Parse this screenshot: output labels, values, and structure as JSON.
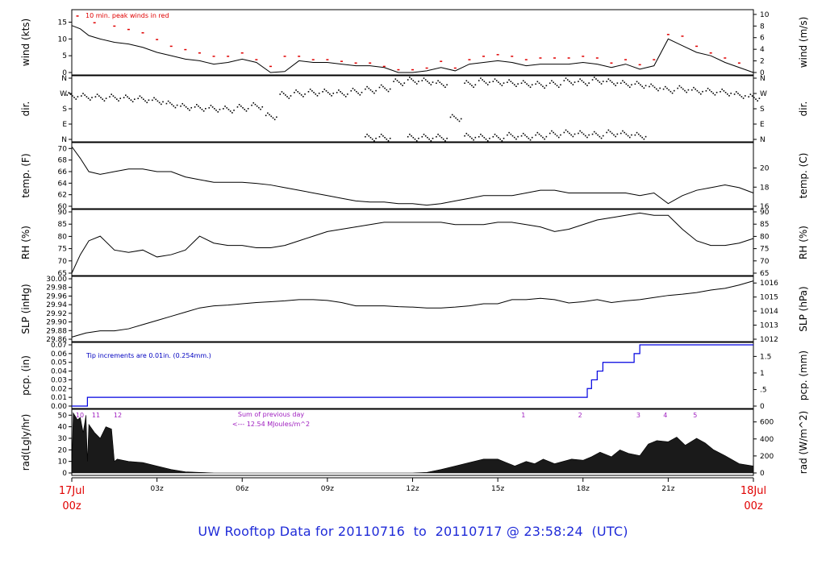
{
  "chart_data": {
    "type": "line",
    "x_axis": {
      "ticks": [
        "03z",
        "06z",
        "09z",
        "12z",
        "15z",
        "18z",
        "21z"
      ],
      "start_label": [
        "17Jul",
        "00z"
      ],
      "end_label": [
        "18Jul",
        "00z"
      ]
    },
    "panels": [
      {
        "id": "wind",
        "ylabel_left": "wind (kts)",
        "ylabel_right": "wind (m/s)",
        "left_ticks": [
          "0",
          "5",
          "10",
          "15"
        ],
        "right_ticks": [
          "0",
          "2",
          "4",
          "6",
          "8",
          "10"
        ],
        "ylim": [
          0,
          18
        ],
        "annotation": "10 min. peak winds in red",
        "series": [
          {
            "color": "#000000",
            "x": [
              0,
              0.3,
              0.6,
              1,
              1.5,
              2,
              2.5,
              3,
              3.5,
              4,
              4.5,
              5,
              5.5,
              6,
              6.5,
              7,
              7.5,
              8,
              8.5,
              9,
              9.5,
              10,
              10.5,
              11,
              11.5,
              12,
              12.5,
              13,
              13.5,
              14,
              14.5,
              15,
              15.5,
              16,
              16.5,
              17,
              17.5,
              18,
              18.5,
              19,
              19.5,
              20,
              20.5,
              21,
              21.5,
              22,
              22.5,
              23,
              23.5,
              24
            ],
            "y": [
              14,
              13,
              11,
              10,
              9,
              8.5,
              7.5,
              6,
              5,
              4,
              3.5,
              2.5,
              3,
              4,
              3,
              0,
              0.3,
              3.5,
              3,
              3,
              2.5,
              2,
              2,
              1.5,
              0,
              0,
              0.5,
              1.5,
              0.5,
              2.5,
              3,
              3.5,
              3,
              2,
              2.5,
              2.5,
              2.5,
              3,
              2.5,
              1.5,
              2.5,
              1,
              2,
              10,
              8,
              6,
              5,
              3,
              1.5,
              0
            ]
          },
          {
            "name": "10 min. peak winds",
            "color": "#e00000",
            "x": [
              0.2,
              0.8,
              1.5,
              2,
              2.5,
              3,
              3.5,
              4,
              4.5,
              5,
              5.5,
              6,
              6.5,
              7,
              7.5,
              8,
              8.5,
              9,
              9.5,
              10,
              10.5,
              11,
              11.5,
              12,
              12.5,
              13,
              13.5,
              14,
              14.5,
              15,
              15.5,
              16,
              16.5,
              17,
              17.5,
              18,
              18.5,
              19,
              19.5,
              20,
              20.5,
              21,
              21.5,
              22,
              22.5,
              23,
              23.5
            ],
            "y": [
              17,
              15,
              14,
              13,
              12,
              10,
              8,
              7,
              6,
              5,
              5,
              6,
              4,
              2,
              5,
              5,
              4,
              4,
              3.5,
              3,
              3,
              2,
              1,
              1,
              1.5,
              3.5,
              1.5,
              4,
              5,
              5.5,
              5,
              4,
              4.5,
              4.5,
              4.5,
              5,
              4.5,
              3,
              4,
              2.5,
              4,
              11.5,
              11,
              8,
              6,
              4.5,
              3
            ]
          }
        ]
      },
      {
        "id": "dir",
        "ylabel_left": "dir.",
        "ylabel_right": "dir.",
        "left_ticks": [
          "N",
          "E",
          "S",
          "W",
          "N"
        ],
        "right_ticks": [
          "N",
          "E",
          "S",
          "W",
          "N"
        ],
        "ylim": [
          0,
          360
        ],
        "series": [
          {
            "color": "#000000",
            "style": "points",
            "x": [
              0,
              0.5,
              1,
              1.5,
              2,
              2.5,
              3,
              3.5,
              4,
              4.5,
              5,
              5.5,
              6,
              6.5,
              7,
              7.5,
              8,
              8.5,
              9,
              9.5,
              10,
              10.5,
              11,
              11.5,
              12,
              12.5,
              13,
              13.5,
              14,
              14.5,
              15,
              15.5,
              16,
              16.5,
              17,
              17.5,
              18,
              18.5,
              19,
              19.5,
              20,
              20.5,
              21,
              21.5,
              22,
              22.5,
              23,
              23.5,
              24
            ],
            "y": [
              250,
              245,
              240,
              240,
              235,
              230,
              220,
              200,
              185,
              180,
              175,
              170,
              180,
              190,
              130,
              255,
              265,
              270,
              270,
              265,
              275,
              285,
              295,
              330,
              340,
              335,
              320,
              120,
              320,
              335,
              330,
              325,
              320,
              315,
              320,
              335,
              330,
              340,
              330,
              320,
              315,
              300,
              285,
              290,
              280,
              275,
              270,
              255,
              240
            ]
          },
          {
            "color": "#000000",
            "style": "points",
            "x": [
              10.5,
              11,
              12,
              12.5,
              13,
              14,
              14.5,
              15,
              15.5,
              16,
              16.5,
              17,
              17.5,
              18,
              18.5,
              19,
              19.5,
              20
            ],
            "y": [
              5,
              5,
              5,
              5,
              5,
              10,
              5,
              5,
              15,
              10,
              15,
              25,
              30,
              25,
              20,
              30,
              25,
              15
            ]
          }
        ]
      },
      {
        "id": "temp",
        "ylabel_left": "temp. (F)",
        "ylabel_right": "temp. (C)",
        "left_ticks": [
          "60",
          "62",
          "64",
          "66",
          "68",
          "70"
        ],
        "right_ticks": [
          "16",
          "18",
          "20"
        ],
        "ylim": [
          59,
          70.5
        ],
        "series": [
          {
            "color": "#000000",
            "x": [
              0,
              0.3,
              0.6,
              1,
              1.5,
              2,
              2.5,
              3,
              3.5,
              4,
              4.5,
              5,
              5.5,
              6,
              6.5,
              7,
              7.5,
              8,
              8.5,
              9,
              9.5,
              10,
              10.5,
              11,
              11.5,
              12,
              12.5,
              13,
              13.5,
              14,
              14.5,
              15,
              15.5,
              16,
              16.5,
              17,
              17.5,
              18,
              18.5,
              19,
              19.5,
              20,
              20.5,
              21,
              21.5,
              22,
              22.5,
              23,
              23.5,
              24
            ],
            "y": [
              70.2,
              68,
              65.5,
              65,
              65.5,
              66,
              66,
              65.5,
              65.5,
              64.5,
              64,
              63.5,
              63.5,
              63.5,
              63.3,
              63,
              62.5,
              62,
              61.5,
              61,
              60.5,
              60,
              59.8,
              59.8,
              59.5,
              59.5,
              59.2,
              59.5,
              60,
              60.5,
              61,
              61,
              61,
              61.5,
              62,
              62,
              61.5,
              61.5,
              61.5,
              61.5,
              61.5,
              61,
              61.5,
              59.5,
              61,
              62,
              62.5,
              63,
              62.5,
              61.5
            ]
          }
        ]
      },
      {
        "id": "rh",
        "ylabel_left": "RH (%)",
        "ylabel_right": "RH (%)",
        "left_ticks": [
          "65",
          "70",
          "75",
          "80",
          "85",
          "90"
        ],
        "right_ticks": [
          "65",
          "70",
          "75",
          "80",
          "85",
          "90"
        ],
        "ylim": [
          65,
          91.5
        ],
        "series": [
          {
            "color": "#000000",
            "x": [
              0,
              0.3,
              0.6,
              1,
              1.5,
              2,
              2.5,
              3,
              3.5,
              4,
              4.5,
              5,
              5.5,
              6,
              6.5,
              7,
              7.5,
              8,
              8.5,
              9,
              9.5,
              10,
              10.5,
              11,
              11.5,
              12,
              12.5,
              13,
              13.5,
              14,
              14.5,
              15,
              15.5,
              16,
              16.5,
              17,
              17.5,
              18,
              18.5,
              19,
              19.5,
              20,
              20.5,
              21,
              21.5,
              22,
              22.5,
              23,
              23.5,
              24
            ],
            "y": [
              65,
              73,
              79,
              81,
              75,
              74,
              75,
              72,
              73,
              75,
              81,
              78,
              77,
              77,
              76,
              76,
              77,
              79,
              81,
              83,
              84,
              85,
              86,
              87,
              87,
              87,
              87,
              87,
              86,
              86,
              86,
              87,
              87,
              86,
              85,
              83,
              84,
              86,
              88,
              89,
              90,
              91,
              90,
              90,
              84,
              79,
              77,
              77,
              78,
              80
            ]
          }
        ]
      },
      {
        "id": "slp",
        "ylabel_left": "SLP (inHg)",
        "ylabel_right": "SLP (hPa)",
        "left_ticks": [
          "29.86",
          "29.88",
          "29.90",
          "29.92",
          "29.94",
          "29.96",
          "29.98",
          "30.00"
        ],
        "right_ticks": [
          "1012",
          "1013",
          "1014",
          "1015",
          "1016"
        ],
        "ylim": [
          29.86,
          30.005
        ],
        "series": [
          {
            "color": "#000000",
            "x": [
              0,
              0.5,
              1,
              1.5,
              2,
              2.5,
              3,
              3.5,
              4,
              4.5,
              5,
              5.5,
              6,
              6.5,
              7,
              7.5,
              8,
              8.5,
              9,
              9.5,
              10,
              10.5,
              11,
              11.5,
              12,
              12.5,
              13,
              13.5,
              14,
              14.5,
              15,
              15.5,
              16,
              16.5,
              17,
              17.5,
              18,
              18.5,
              19,
              19.5,
              20,
              20.5,
              21,
              21.5,
              22,
              22.5,
              23,
              23.5,
              24
            ],
            "y": [
              29.865,
              29.875,
              29.88,
              29.88,
              29.885,
              29.895,
              29.905,
              29.915,
              29.925,
              29.935,
              29.94,
              29.942,
              29.945,
              29.948,
              29.95,
              29.952,
              29.955,
              29.955,
              29.953,
              29.948,
              29.94,
              29.94,
              29.94,
              29.938,
              29.937,
              29.935,
              29.935,
              29.937,
              29.94,
              29.945,
              29.945,
              29.955,
              29.955,
              29.958,
              29.955,
              29.947,
              29.95,
              29.955,
              29.948,
              29.952,
              29.955,
              29.96,
              29.965,
              29.968,
              29.972,
              29.978,
              29.982,
              29.99,
              30.0
            ]
          }
        ]
      },
      {
        "id": "pcp",
        "ylabel_left": "pcp. (in)",
        "ylabel_right": "pcp. (mm)",
        "left_ticks": [
          "0.00",
          "0.01",
          "0.02",
          "0.03",
          "0.04",
          "0.05",
          "0.06",
          "0.07"
        ],
        "right_ticks": [
          "0",
          ".5",
          "1",
          "1.5"
        ],
        "ylim": [
          0,
          0.07
        ],
        "annotation": "Tip increments are 0.01in. (0.254mm.)",
        "series": [
          {
            "color": "#0000e0",
            "style": "step",
            "x": [
              0,
              0.5,
              0.55,
              18,
              18.15,
              18.3,
              18.5,
              18.7,
              19.2,
              19.8,
              20.0,
              24
            ],
            "y": [
              0,
              0,
              0.01,
              0.01,
              0.02,
              0.03,
              0.04,
              0.05,
              0.05,
              0.06,
              0.07,
              0.07
            ]
          }
        ]
      },
      {
        "id": "rad",
        "ylabel_left": "rad(Lgly/hr)",
        "ylabel_right": "rad (W/m^2)",
        "left_ticks": [
          "0",
          "10",
          "20",
          "30",
          "40",
          "50"
        ],
        "right_ticks": [
          "0",
          "200",
          "400",
          "600"
        ],
        "ylim": [
          0,
          53
        ],
        "note": [
          "Sum of previous day",
          "<--- 12.54 MJoules/m^2"
        ],
        "hour_labels": [
          "10",
          "11",
          "12",
          "1",
          "2",
          "3",
          "4",
          "5"
        ],
        "series": [
          {
            "color": "#1a1a1a",
            "style": "area",
            "x": [
              0,
              0.05,
              0.2,
              0.3,
              0.4,
              0.5,
              0.55,
              0.6,
              0.8,
              1.0,
              1.2,
              1.4,
              1.5,
              1.6,
              2,
              2.5,
              3,
              3.5,
              4,
              4.5,
              5,
              12,
              12.5,
              13,
              13.5,
              14,
              14.5,
              15,
              15.3,
              15.6,
              16,
              16.3,
              16.6,
              17,
              17.3,
              17.6,
              18,
              18.3,
              18.6,
              19,
              19.3,
              19.6,
              20,
              20.3,
              20.6,
              21,
              21.3,
              21.6,
              22,
              22.3,
              22.6,
              23,
              23.5,
              24
            ],
            "y": [
              0,
              52,
              46,
              48,
              35,
              50,
              10,
              42,
              35,
              30,
              40,
              38,
              10,
              12,
              10,
              9,
              6,
              3,
              1,
              0.5,
              0,
              0,
              0.5,
              3,
              6,
              9,
              12,
              12,
              9,
              6,
              10,
              8,
              12,
              8,
              10,
              12,
              11,
              14,
              18,
              14,
              20,
              17,
              15,
              25,
              28,
              27,
              31,
              24,
              30,
              26,
              20,
              15,
              8,
              6
            ]
          }
        ]
      }
    ],
    "title_parts": [
      "UW Rooftop Data for 20110716",
      "to",
      "20110717 @ 23:58:24",
      "(UTC)"
    ]
  }
}
